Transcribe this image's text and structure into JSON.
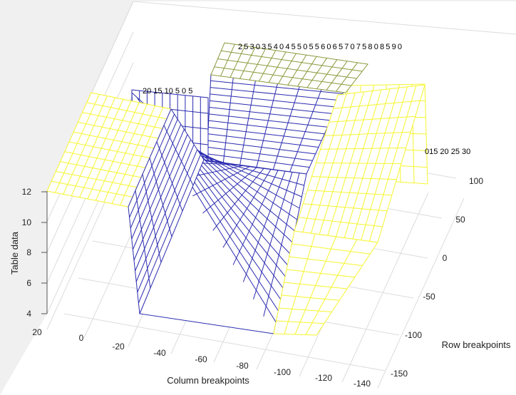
{
  "chart_data": {
    "type": "surface-mesh",
    "title": "",
    "xlabel": "Column breakpoints",
    "ylabel": "Row breakpoints",
    "zlabel": "Table data",
    "x_ticks": [
      "20",
      "0",
      "-20",
      "-40",
      "-60",
      "-80",
      "-100",
      "-120",
      "-140"
    ],
    "y_ticks": [
      "-150",
      "-100",
      "-50",
      "0",
      "50",
      "100"
    ],
    "z_ticks": [
      "4",
      "6",
      "8",
      "10",
      "12"
    ],
    "zlim": [
      4,
      12
    ],
    "surface_levels": {
      "low": 4,
      "mid_step": 9,
      "high": 12
    },
    "plateaus": [
      {
        "name": "left-high",
        "z": 12
      },
      {
        "name": "right-high",
        "z": 12
      },
      {
        "name": "back-mid",
        "z": 9
      },
      {
        "name": "floor",
        "z": 4
      }
    ],
    "row_labels_back": "2530354045505560657075808590",
    "row_labels_left": "20 15 10 5  0  5",
    "row_labels_right": "015 20 25 30",
    "colors": {
      "low": "#2b2bb0",
      "mid": "#8a9a3c",
      "high": "#f5f530",
      "background": "#f0f0f0",
      "axes_bg": "#ffffff",
      "grid": "#dcdcdc"
    }
  }
}
